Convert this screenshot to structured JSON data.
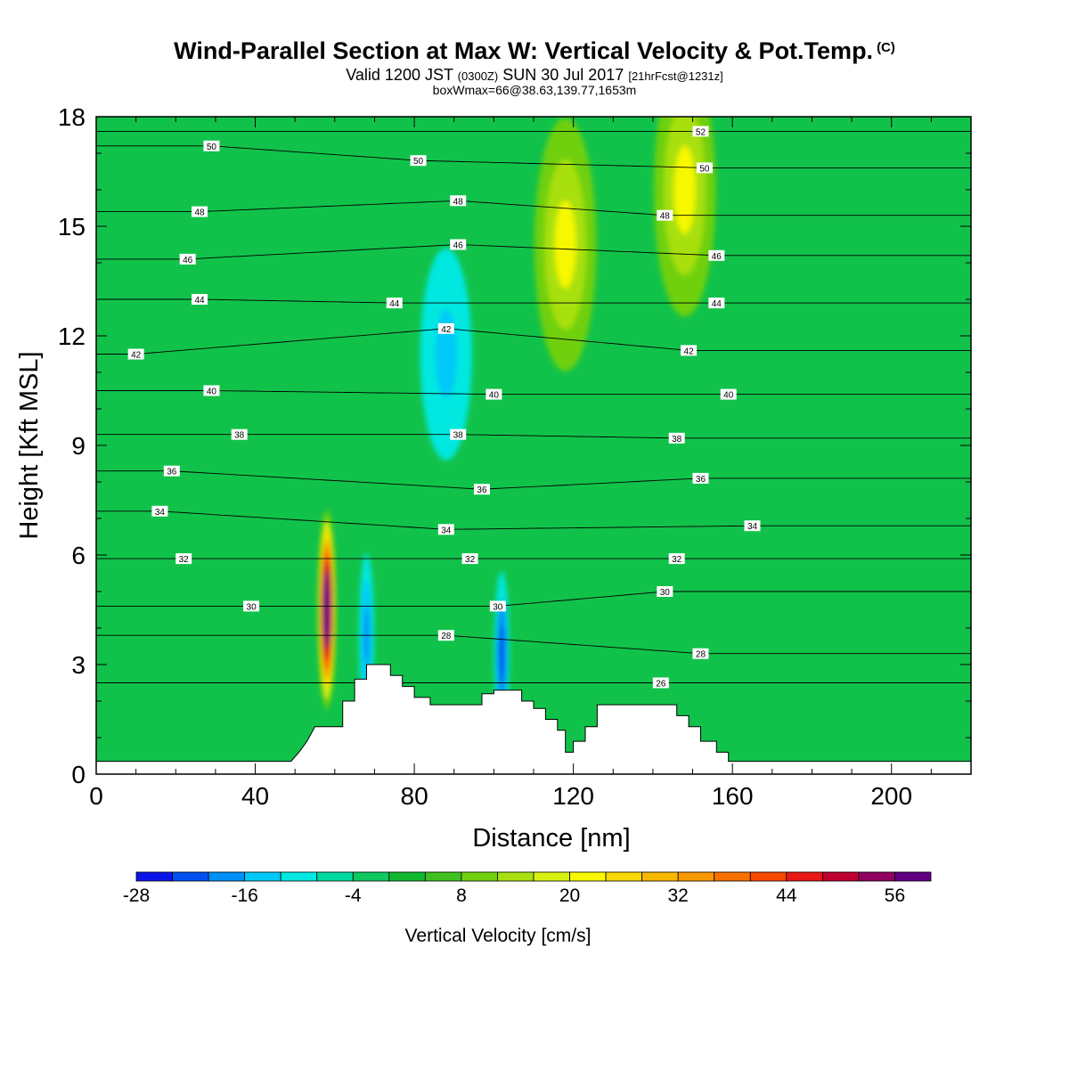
{
  "titles": {
    "main": "Wind-Parallel Section at Max W: Vertical Velocity & Pot.Temp.",
    "copyright": "(C)",
    "valid_prefix": "Valid 1200 JST",
    "valid_utc": "(0300Z)",
    "valid_date": "SUN 30 Jul 2017",
    "forecast": "[21hrFcst@1231z]",
    "box_info": "boxWmax=66@38.63,139.77,1653m"
  },
  "colors": {
    "background_field": "#11c24a",
    "terrain": "#ffffff",
    "contour": "#000000"
  },
  "chart_data": {
    "type": "heatmap",
    "xlabel": "Distance [nm]",
    "ylabel": "Height [Kft MSL]",
    "xlim": [
      0,
      220
    ],
    "ylim": [
      0,
      18
    ],
    "xticks": [
      0,
      40,
      80,
      120,
      160,
      200
    ],
    "yticks": [
      0,
      3,
      6,
      9,
      12,
      15,
      18
    ],
    "colorbar": {
      "label": "Vertical Velocity [cm/s]",
      "min": -28,
      "step": 4,
      "tick_labels": [
        -28,
        -16,
        -4,
        8,
        20,
        32,
        44,
        56
      ],
      "colors": [
        "#0a14e8",
        "#0050f0",
        "#0090f8",
        "#00c8f8",
        "#00e8e0",
        "#00d8a0",
        "#10c860",
        "#10b830",
        "#40c020",
        "#70d010",
        "#a8e010",
        "#d8f010",
        "#f8f800",
        "#f8d800",
        "#f8b800",
        "#f89800",
        "#f87000",
        "#f84800",
        "#e81818",
        "#c00030",
        "#900060",
        "#600080"
      ]
    },
    "terrain_profile": [
      [
        48,
        0
      ],
      [
        49,
        0.3
      ],
      [
        51,
        0.6
      ],
      [
        53,
        0.9
      ],
      [
        55,
        1.3
      ],
      [
        62,
        1.3
      ],
      [
        62,
        2
      ],
      [
        65,
        2
      ],
      [
        65,
        2.6
      ],
      [
        68,
        2.6
      ],
      [
        68,
        3
      ],
      [
        74,
        3
      ],
      [
        74,
        2.7
      ],
      [
        77,
        2.7
      ],
      [
        77,
        2.4
      ],
      [
        80,
        2.4
      ],
      [
        80,
        2.1
      ],
      [
        84,
        2.1
      ],
      [
        84,
        1.9
      ],
      [
        97,
        1.9
      ],
      [
        97,
        2.2
      ],
      [
        100,
        2.2
      ],
      [
        100,
        2.3
      ],
      [
        107,
        2.3
      ],
      [
        107,
        2
      ],
      [
        110,
        2
      ],
      [
        110,
        1.8
      ],
      [
        113,
        1.8
      ],
      [
        113,
        1.5
      ],
      [
        116,
        1.5
      ],
      [
        116,
        1.2
      ],
      [
        118,
        1.2
      ],
      [
        118,
        0.6
      ],
      [
        120,
        0.6
      ],
      [
        120,
        0.9
      ],
      [
        123,
        0.9
      ],
      [
        123,
        1.3
      ],
      [
        126,
        1.3
      ],
      [
        126,
        1.9
      ],
      [
        146,
        1.9
      ],
      [
        146,
        1.6
      ],
      [
        149,
        1.6
      ],
      [
        149,
        1.3
      ],
      [
        152,
        1.3
      ],
      [
        152,
        0.9
      ],
      [
        156,
        0.9
      ],
      [
        156,
        0.6
      ],
      [
        159,
        0.6
      ],
      [
        159,
        0.3
      ],
      [
        162,
        0.3
      ],
      [
        162,
        0
      ]
    ],
    "features": [
      {
        "kind": "updraft",
        "x": 58,
        "y": 4.5,
        "peak": 66
      },
      {
        "kind": "downdraft",
        "x": 68,
        "y": 3.8,
        "peak": -20
      },
      {
        "kind": "downdraft",
        "x": 102,
        "y": 3.3,
        "peak": -24
      },
      {
        "kind": "updraft",
        "x": 118,
        "y": 14.5,
        "peak": 20
      },
      {
        "kind": "updraft",
        "x": 148,
        "y": 16,
        "peak": 20
      },
      {
        "kind": "downdraft",
        "x": 88,
        "y": 11.5,
        "peak": -16
      }
    ],
    "isentropes": [
      {
        "theta": 26,
        "points": [
          [
            142,
            2.5
          ]
        ]
      },
      {
        "theta": 28,
        "points": [
          [
            88,
            3.8
          ],
          [
            152,
            3.3
          ]
        ]
      },
      {
        "theta": 30,
        "points": [
          [
            39,
            4.6
          ],
          [
            101,
            4.6
          ],
          [
            143,
            5.0
          ]
        ]
      },
      {
        "theta": 32,
        "points": [
          [
            22,
            5.9
          ],
          [
            94,
            5.9
          ],
          [
            146,
            5.9
          ]
        ]
      },
      {
        "theta": 34,
        "points": [
          [
            16,
            7.2
          ],
          [
            88,
            6.7
          ],
          [
            165,
            6.8
          ]
        ]
      },
      {
        "theta": 36,
        "points": [
          [
            19,
            8.3
          ],
          [
            97,
            7.8
          ],
          [
            152,
            8.1
          ]
        ]
      },
      {
        "theta": 38,
        "points": [
          [
            36,
            9.3
          ],
          [
            91,
            9.3
          ],
          [
            146,
            9.2
          ]
        ]
      },
      {
        "theta": 40,
        "points": [
          [
            29,
            10.5
          ],
          [
            100,
            10.4
          ],
          [
            159,
            10.4
          ]
        ]
      },
      {
        "theta": 42,
        "points": [
          [
            10,
            11.5
          ],
          [
            88,
            12.2
          ],
          [
            149,
            11.6
          ]
        ]
      },
      {
        "theta": 44,
        "points": [
          [
            26,
            13.0
          ],
          [
            75,
            12.9
          ],
          [
            156,
            12.9
          ]
        ]
      },
      {
        "theta": 46,
        "points": [
          [
            23,
            14.1
          ],
          [
            91,
            14.5
          ],
          [
            156,
            14.2
          ]
        ]
      },
      {
        "theta": 48,
        "points": [
          [
            26,
            15.4
          ],
          [
            91,
            15.7
          ],
          [
            143,
            15.3
          ]
        ]
      },
      {
        "theta": 50,
        "points": [
          [
            29,
            17.2
          ],
          [
            81,
            16.8
          ],
          [
            153,
            16.6
          ]
        ]
      },
      {
        "theta": 52,
        "points": [
          [
            152,
            17.6
          ]
        ]
      }
    ]
  }
}
